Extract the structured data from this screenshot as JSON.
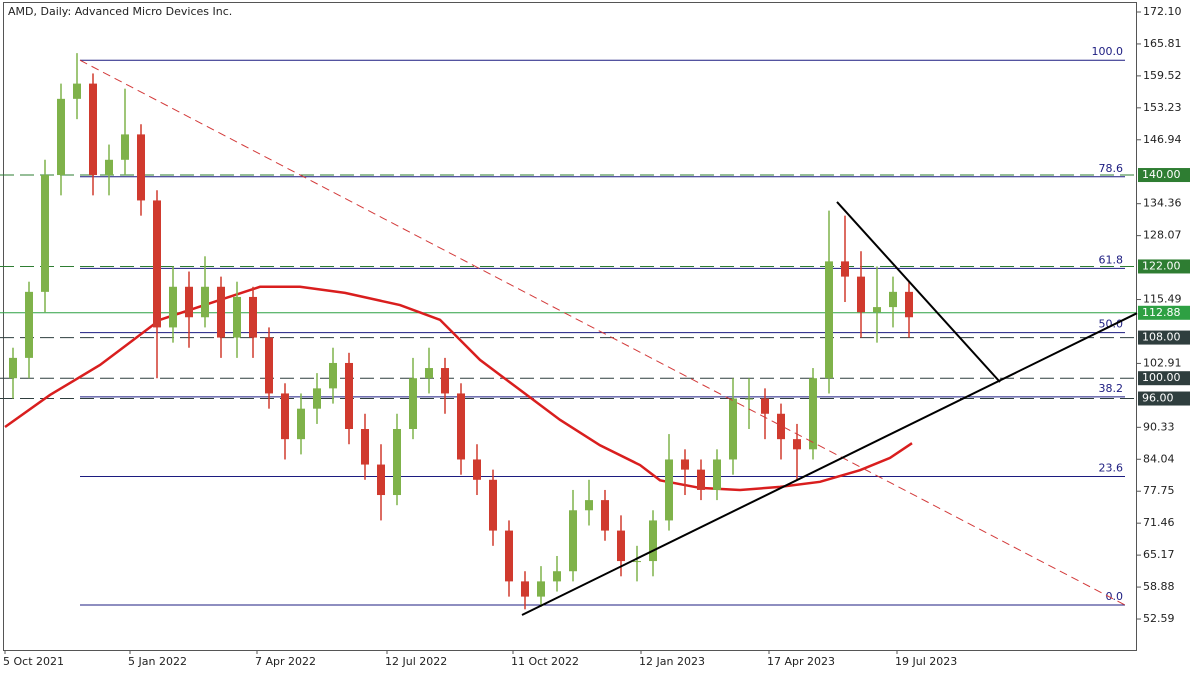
{
  "chart_data": {
    "type": "candlestick",
    "title": "AMD, Daily:  Advanced Micro Devices Inc.",
    "x": [
      4,
      12,
      20,
      28,
      36,
      44,
      52,
      60,
      68,
      76,
      84,
      92,
      100,
      108,
      116,
      124,
      132,
      140,
      148,
      156,
      164,
      172,
      180,
      188,
      196,
      204,
      212,
      220,
      228,
      236,
      244,
      252,
      260,
      268,
      276,
      284,
      292,
      300,
      308,
      316,
      324,
      332,
      340,
      348,
      356,
      364,
      372,
      380,
      388,
      396,
      404,
      412,
      420,
      428,
      436,
      444,
      452
    ],
    "open": [
      100,
      104,
      117,
      140,
      155,
      158,
      140,
      143,
      148,
      135,
      110,
      118,
      112,
      118,
      108,
      116,
      108,
      97,
      88,
      94,
      98,
      103,
      90,
      83,
      77,
      90,
      100,
      102,
      97,
      84,
      80,
      70,
      60,
      57,
      60,
      62,
      74,
      76,
      70,
      64,
      64,
      72,
      84,
      82,
      78,
      84,
      96,
      96,
      93,
      88,
      86,
      100,
      123,
      120,
      113,
      114,
      117
    ],
    "high": [
      106,
      119,
      143,
      158,
      164,
      160,
      146,
      157,
      150,
      137,
      122,
      121,
      124,
      120,
      119,
      118,
      110,
      99,
      97,
      101,
      106,
      105,
      93,
      87,
      93,
      104,
      106,
      104,
      99,
      87,
      82,
      72,
      62,
      63,
      65,
      78,
      80,
      78,
      73,
      67,
      74,
      89,
      86,
      84,
      86,
      100,
      100,
      98,
      95,
      91,
      102,
      133,
      132,
      125,
      122,
      120,
      119
    ],
    "low": [
      96,
      100,
      113,
      136,
      151,
      136,
      136,
      140,
      132,
      100,
      107,
      106,
      110,
      104,
      104,
      104,
      94,
      84,
      85,
      91,
      95,
      87,
      80,
      72,
      75,
      88,
      97,
      93,
      81,
      77,
      67,
      57,
      54.5,
      55,
      58,
      60,
      71,
      68,
      61,
      60,
      61,
      70,
      77,
      76,
      76,
      81,
      90,
      88,
      84,
      80,
      84,
      97,
      115,
      108,
      107,
      110,
      108
    ],
    "close": [
      104,
      117,
      140,
      155,
      158,
      140,
      143,
      148,
      135,
      110,
      118,
      112,
      118,
      108,
      116,
      108,
      97,
      88,
      94,
      98,
      103,
      90,
      83,
      77,
      90,
      100,
      102,
      97,
      84,
      80,
      70,
      60,
      57,
      60,
      62,
      74,
      76,
      70,
      64,
      64,
      72,
      84,
      82,
      78,
      84,
      96,
      96,
      93,
      88,
      86,
      100,
      123,
      120,
      113,
      114,
      117,
      112
    ],
    "up_color": "#7fb24a",
    "down_color": "#d03a2e",
    "xlim": [
      0,
      566
    ],
    "ylim": [
      46.49,
      174.46
    ],
    "xticks": [
      {
        "value": 0,
        "label": "5 Oct 2021"
      },
      {
        "value": 62.5,
        "label": "5 Jan 2022"
      },
      {
        "value": 126,
        "label": "7 Apr 2022"
      },
      {
        "value": 191,
        "label": "12 Jul 2022"
      },
      {
        "value": 254,
        "label": "11 Oct 2022"
      },
      {
        "value": 318,
        "label": "12 Jan 2023"
      },
      {
        "value": 382,
        "label": "17 Apr 2023"
      },
      {
        "value": 446,
        "label": "19 Jul 2023"
      }
    ],
    "yticks": [
      {
        "value": 172.1,
        "label": "172.10"
      },
      165.81,
      159.52,
      153.23,
      146.94,
      134.36,
      128.07,
      115.49,
      102.91,
      90.33,
      84.04,
      77.75,
      71.46,
      65.17,
      58.88,
      52.59
    ],
    "moving_average": {
      "color": "#d91e1e",
      "x": [
        0,
        22.5,
        47.5,
        77.5,
        107.5,
        127.5,
        147.5,
        170,
        197.5,
        217.5,
        237.5,
        257.5,
        277.5,
        297.5,
        317.5,
        327.5,
        347.5,
        367.5,
        387.5,
        407.5,
        427.5,
        442.5,
        453.5
      ],
      "values": [
        90.4,
        96.7,
        102.6,
        111.5,
        115.4,
        118,
        118,
        116.8,
        114.4,
        111.5,
        103.6,
        97.7,
        91.8,
        86.8,
        82.9,
        79.9,
        78.4,
        78,
        78.6,
        79.6,
        81.9,
        84.3,
        87.2
      ]
    },
    "levels": [
      {
        "value": 140,
        "label": "140.00",
        "color": "#2e7d32"
      },
      {
        "value": 122,
        "label": "122.00",
        "color": "#2e7d32"
      },
      {
        "value": 108,
        "label": "108.00",
        "color": "#2f3e3e"
      },
      {
        "value": 100,
        "label": "100.00",
        "color": "#2f3e3e"
      },
      {
        "value": 96,
        "label": "96.00",
        "color": "#2f3e3e"
      }
    ],
    "current_price": {
      "value": 112.88,
      "label": "112.88",
      "color": "#2ea043"
    },
    "fibonacci": {
      "color": "#1c1c80",
      "x": [
        37.5,
        560
      ],
      "levels": [
        {
          "label": "100.0",
          "value": 162.6
        },
        {
          "label": "78.6",
          "value": 139.65
        },
        {
          "label": "61.8",
          "value": 121.63
        },
        {
          "label": "50.0",
          "value": 108.98
        },
        {
          "label": "38.2",
          "value": 96.32
        },
        {
          "label": "23.6",
          "value": 80.66
        },
        {
          "label": "0.0",
          "value": 55.35
        }
      ]
    },
    "trend_lines": [
      {
        "color": "#d33a3a",
        "dashed": true,
        "x": [
          37.5,
          560
        ],
        "values": [
          162.6,
          55.35
        ]
      },
      {
        "color": "#000000",
        "dashed": false,
        "x": [
          258.5,
          566
        ],
        "values": [
          53.38,
          112.8
        ]
      },
      {
        "color": "#000000",
        "dashed": false,
        "x": [
          416,
          497.5
        ],
        "values": [
          134.7,
          99.25
        ]
      }
    ]
  }
}
